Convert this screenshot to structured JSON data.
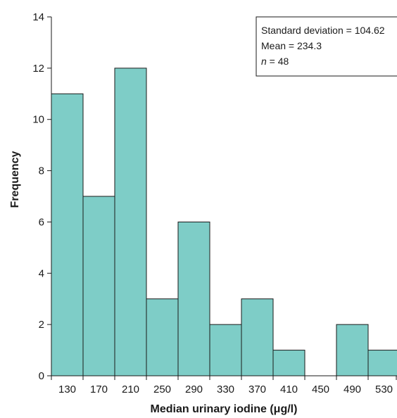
{
  "chart_data": {
    "type": "bar",
    "subtype": "histogram",
    "categories": [
      "130",
      "170",
      "210",
      "250",
      "290",
      "330",
      "370",
      "410",
      "450",
      "490",
      "530"
    ],
    "values": [
      11,
      7,
      12,
      3,
      6,
      2,
      3,
      1,
      0,
      2,
      1
    ],
    "xlabel_prefix": "Median urinary iodine (",
    "xlabel_unit": "μg/l",
    "xlabel_suffix": ")",
    "ylabel": "Frequency",
    "ylim": [
      0,
      14
    ],
    "yticks": [
      0,
      2,
      4,
      6,
      8,
      10,
      12,
      14
    ],
    "grid": false,
    "bar_color": "#7ecdc7",
    "stats_box": {
      "std_line": "Standard deviation = 104.62",
      "mean_line": "Mean = 234.3",
      "n_symbol": "n",
      "n_rest": " = 48"
    }
  }
}
